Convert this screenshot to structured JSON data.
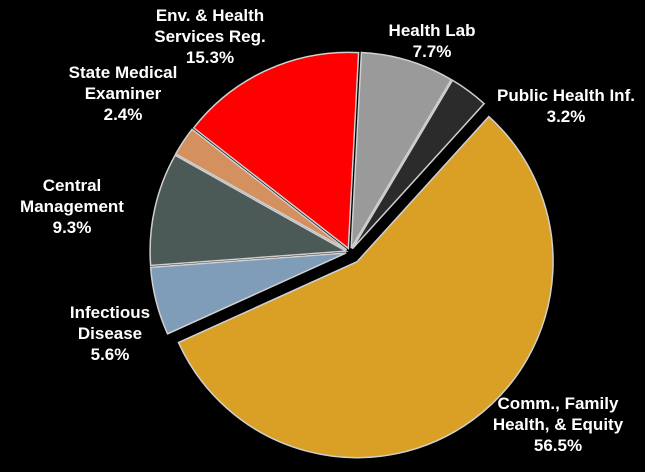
{
  "chart_data": {
    "type": "pie",
    "categories": [
      "Health Lab",
      "Public Health Inf.",
      "Comm., Family Health, & Equity",
      "Infectious Disease",
      "Central Management",
      "State Medical Examiner",
      "Env. & Health Services Reg."
    ],
    "values": [
      7.7,
      3.2,
      56.5,
      5.6,
      9.3,
      2.4,
      15.3
    ],
    "value_labels": [
      "7.7%",
      "3.2%",
      "56.5%",
      "5.6%",
      "9.3%",
      "2.4%",
      "15.3%"
    ],
    "colors": [
      "#9a9a9a",
      "#2b2b2b",
      "#daa025",
      "#7f9cb8",
      "#4b5a56",
      "#d4905f",
      "#ff0000"
    ]
  }
}
